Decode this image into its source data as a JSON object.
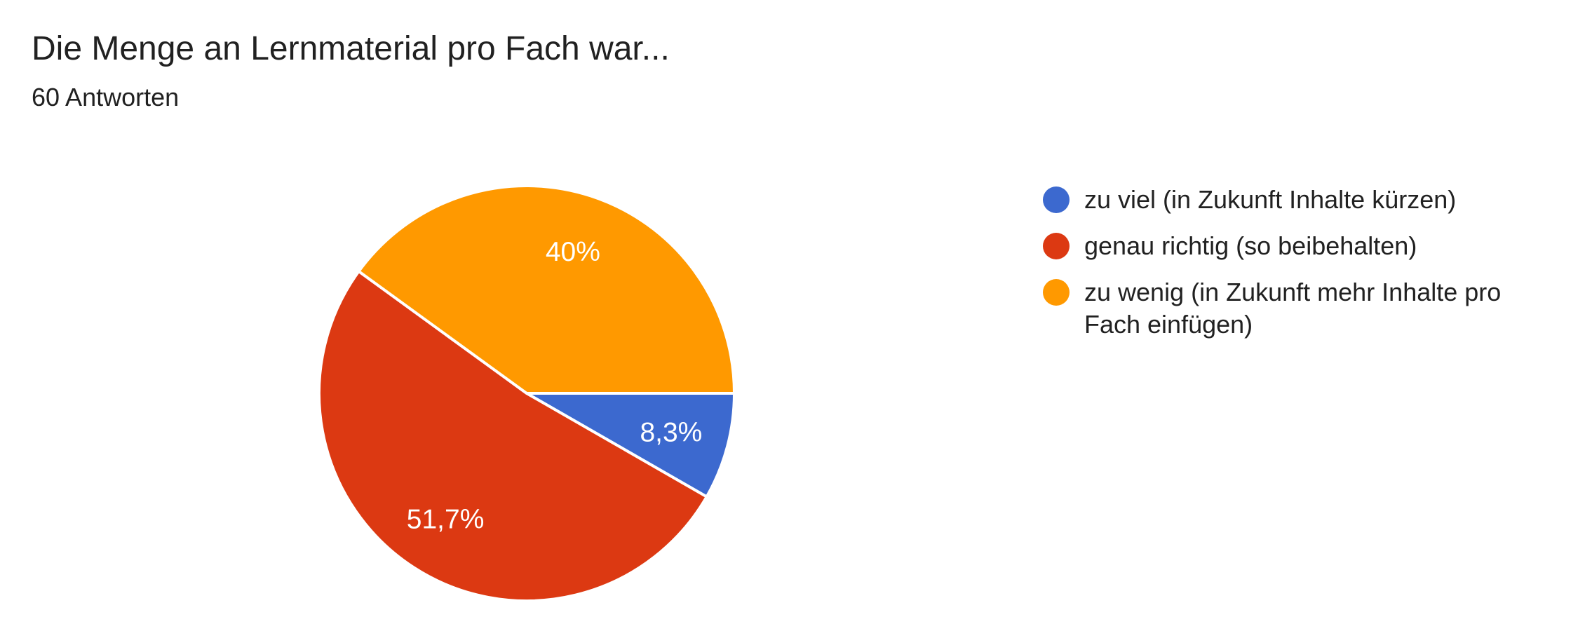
{
  "chart_data": {
    "type": "pie",
    "title": "Die Menge an Lernmaterial pro Fach war...",
    "subtitle": "60 Antworten",
    "total_responses": 60,
    "start_angle_deg": 0,
    "direction": "clockwise",
    "legend_position": "right",
    "label_radius_fraction": 0.72,
    "separator_color": "#ffffff",
    "text_color": "#212121",
    "background_color": "#ffffff",
    "slices": [
      {
        "label": "zu viel (in Zukunft Inhalte kürzen)",
        "value_pct": 8.3,
        "display_pct": "8,3%",
        "color": "#3C69CF"
      },
      {
        "label": "genau richtig (so beibehalten)",
        "value_pct": 51.7,
        "display_pct": "51,7%",
        "color": "#DC3912"
      },
      {
        "label": "zu wenig (in Zukunft mehr Inhalte pro Fach einfügen)",
        "value_pct": 40,
        "display_pct": "40%",
        "color": "#FF9900"
      }
    ]
  }
}
